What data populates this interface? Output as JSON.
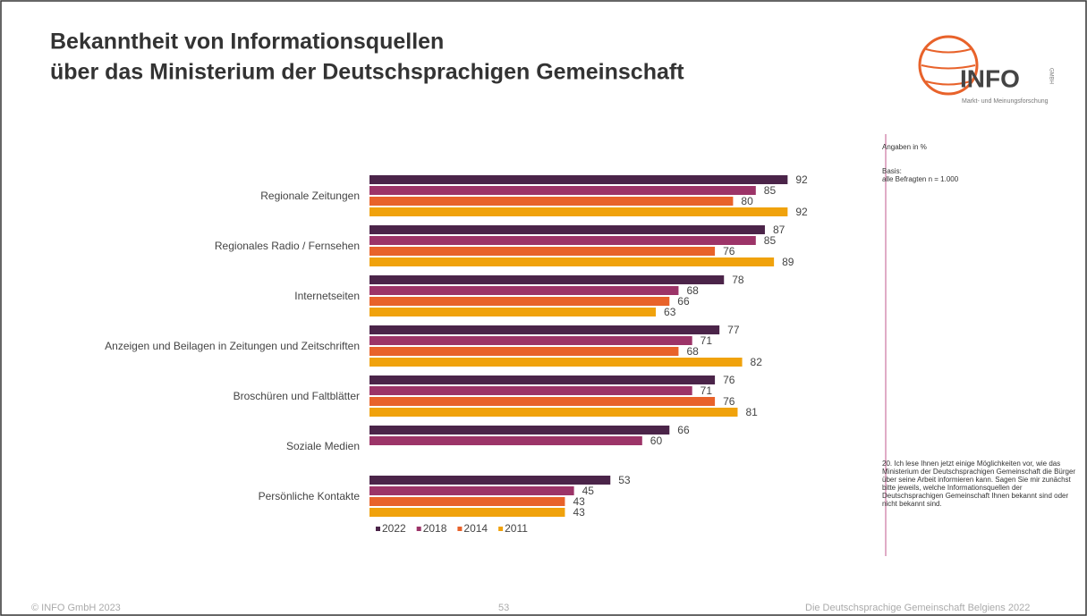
{
  "chart_data": {
    "type": "bar",
    "orientation": "horizontal",
    "title_lines": [
      "Bekanntheit von Informationsquellen",
      "über das Ministerium der Deutschsprachigen Gemeinschaft"
    ],
    "categories": [
      "Regionale Zeitungen",
      "Regionales Radio / Fernsehen",
      "Internetseiten",
      "Anzeigen und Beilagen in Zeitungen und Zeitschriften",
      "Broschüren und Faltblätter",
      "Soziale Medien",
      "Persönliche Kontakte"
    ],
    "series": [
      {
        "name": "2022",
        "color": "#4b2449",
        "values": [
          92,
          87,
          78,
          77,
          76,
          66,
          53
        ]
      },
      {
        "name": "2018",
        "color": "#9c3468",
        "values": [
          85,
          85,
          68,
          71,
          71,
          60,
          45
        ]
      },
      {
        "name": "2014",
        "color": "#e8622a",
        "values": [
          80,
          76,
          66,
          68,
          76,
          null,
          43
        ]
      },
      {
        "name": "2011",
        "color": "#f0a20c",
        "values": [
          92,
          89,
          63,
          82,
          81,
          null,
          43
        ]
      }
    ],
    "legend": "bottom"
  },
  "side_notes": {
    "unit": "Angaben in %",
    "basis_label": "Basis:",
    "basis": "alle Befragten n = 1.000",
    "question": "20. Ich lese Ihnen jetzt einige Möglichkeiten vor, wie das Ministerium der Deutschsprachigen Gemeinschaft die Bürger über seine Arbeit informieren kann. Sagen Sie mir zunächst bitte jeweils, welche Informationsquellen der Deutschsprachigen Gemeinschaft Ihnen bekannt sind oder nicht bekannt sind."
  },
  "logo": {
    "name": "INFO",
    "suffix": "GMBH",
    "tagline": "Markt- und Meinungsforschung"
  },
  "footer": {
    "left": "© INFO GmbH 2023",
    "page": "53",
    "right": "Die Deutschsprachige Gemeinschaft Belgiens 2022"
  }
}
